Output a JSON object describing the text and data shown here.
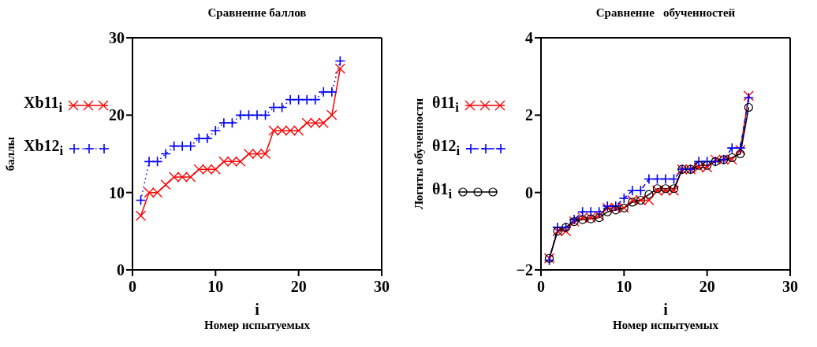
{
  "chart_data": [
    {
      "type": "line",
      "title": "Сравнение баллов",
      "xlabel": "i\nНомер испытуемых",
      "ylabel": "баллы",
      "x": [
        1,
        2,
        3,
        4,
        5,
        6,
        7,
        8,
        9,
        10,
        11,
        12,
        13,
        14,
        15,
        16,
        17,
        18,
        19,
        20,
        21,
        22,
        23,
        24,
        25
      ],
      "series": [
        {
          "name": "Xb11$_{i}$",
          "color": "#ff0000",
          "marker": "cross",
          "line_style": "solid",
          "values": [
            7,
            10,
            10,
            11,
            12,
            12,
            12,
            13,
            13,
            13,
            14,
            14,
            14,
            15,
            15,
            15,
            18,
            18,
            18,
            18,
            19,
            19,
            19,
            20,
            26
          ]
        },
        {
          "name": "Xb12$_{i}$",
          "color": "#0000ff",
          "marker": "plus",
          "line_style": "dotted",
          "values": [
            9,
            14,
            14,
            15,
            16,
            16,
            16,
            17,
            17,
            18,
            19,
            19,
            20,
            20,
            20,
            20,
            21,
            21,
            22,
            22,
            22,
            22,
            23,
            23,
            27
          ]
        }
      ],
      "xlim": [
        0,
        30
      ],
      "xticks": [
        0,
        10,
        20,
        30
      ],
      "ylim": [
        0,
        30
      ],
      "yticks": [
        0,
        10,
        20,
        30
      ],
      "grid": false,
      "legend": "left"
    },
    {
      "type": "line",
      "title": "Сравнение   обученностей",
      "xlabel": "i\nНомер испытуемых",
      "ylabel": "Логиты обученности",
      "x": [
        1,
        2,
        3,
        4,
        5,
        6,
        7,
        8,
        9,
        10,
        11,
        12,
        13,
        14,
        15,
        16,
        17,
        18,
        19,
        20,
        21,
        22,
        23,
        24,
        25
      ],
      "series": [
        {
          "name": "θ11$_{i}$",
          "color": "#ff0000",
          "marker": "cross",
          "line_style": "solid",
          "values": [
            -1.7,
            -1.0,
            -1.0,
            -0.75,
            -0.65,
            -0.65,
            -0.6,
            -0.4,
            -0.4,
            -0.4,
            -0.2,
            -0.2,
            -0.2,
            0.05,
            0.05,
            0.05,
            0.6,
            0.6,
            0.65,
            0.65,
            0.85,
            0.85,
            0.85,
            1.1,
            2.5
          ]
        },
        {
          "name": "θ12$_{i}$",
          "color": "#0000ff",
          "marker": "plus",
          "line_style": "dashed",
          "values": [
            -1.75,
            -0.9,
            -0.9,
            -0.7,
            -0.5,
            -0.5,
            -0.5,
            -0.35,
            -0.35,
            -0.15,
            0.05,
            0.05,
            0.35,
            0.35,
            0.35,
            0.35,
            0.6,
            0.6,
            0.8,
            0.8,
            0.8,
            0.85,
            1.15,
            1.15,
            2.45
          ]
        },
        {
          "name": "θ1$_{i}$",
          "color": "#000000",
          "marker": "circle",
          "line_style": "solid",
          "values": [
            -1.7,
            -1.0,
            -0.9,
            -0.75,
            -0.7,
            -0.68,
            -0.65,
            -0.5,
            -0.45,
            -0.4,
            -0.25,
            -0.2,
            -0.05,
            0.1,
            0.1,
            0.1,
            0.6,
            0.6,
            0.7,
            0.7,
            0.8,
            0.85,
            0.9,
            1.0,
            2.2
          ]
        }
      ],
      "xlim": [
        0,
        30
      ],
      "xticks": [
        0,
        10,
        20,
        30
      ],
      "ylim": [
        -2,
        4
      ],
      "yticks": [
        -2,
        0,
        2,
        4
      ],
      "grid": false,
      "legend": "left"
    }
  ]
}
